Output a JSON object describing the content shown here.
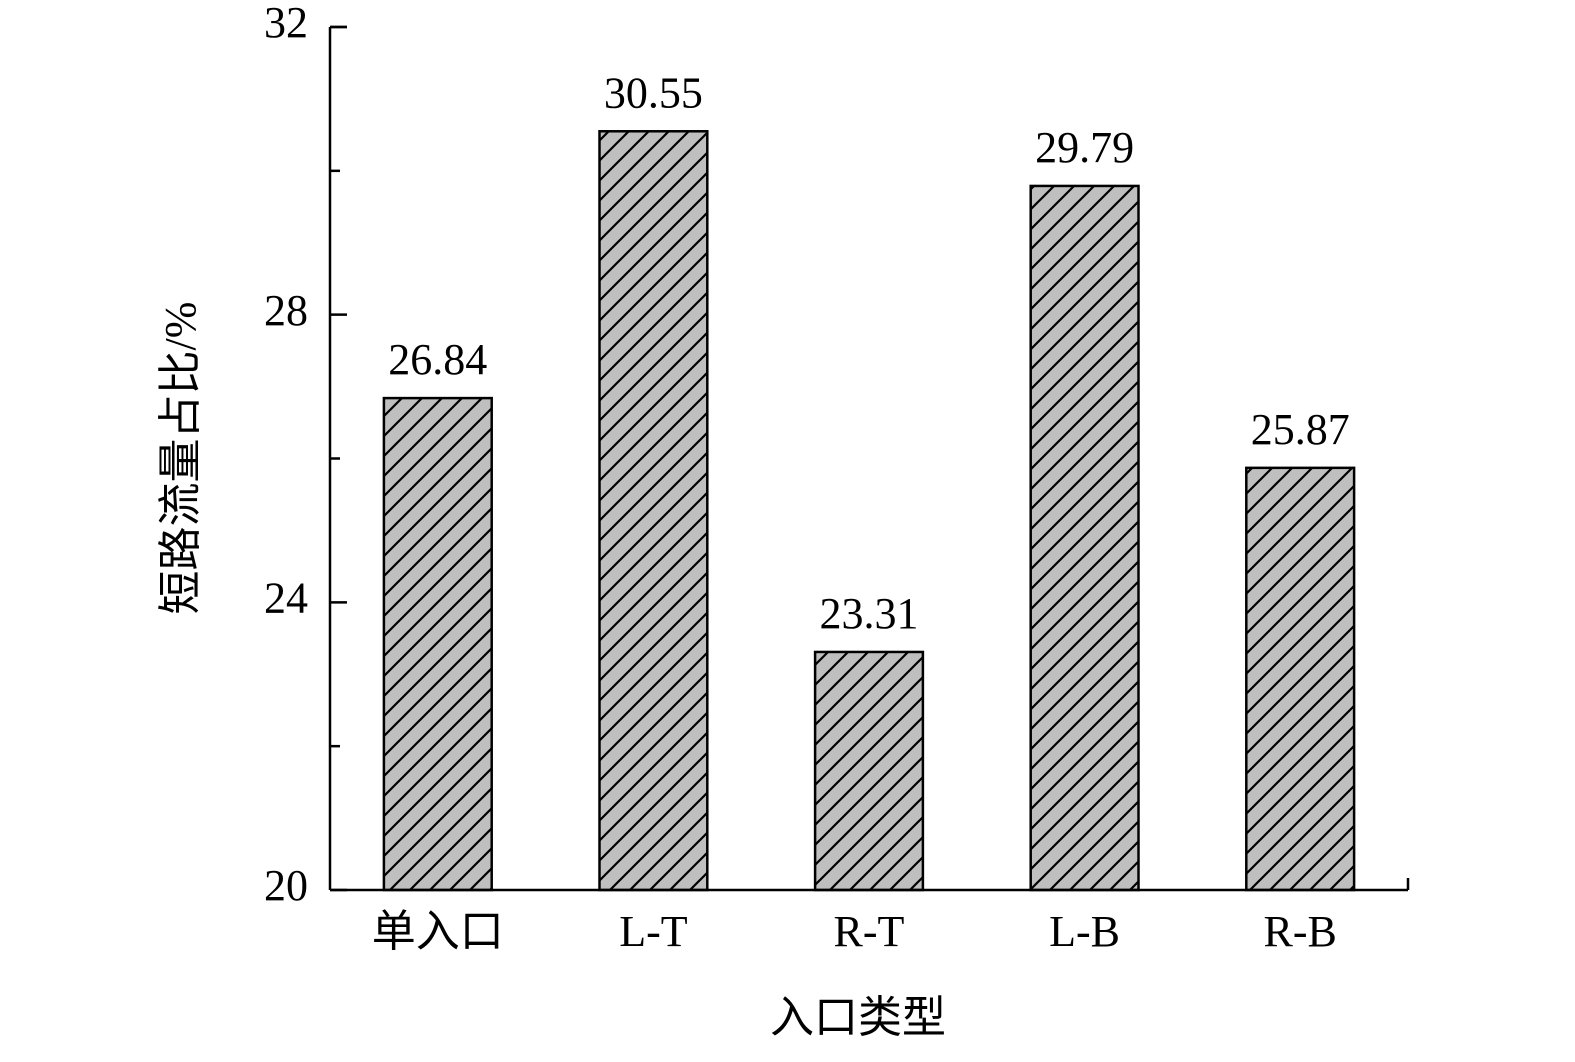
{
  "chart_data": {
    "type": "bar",
    "x_label": "入口类型",
    "y_label": "短路流量占比/%",
    "categories": [
      "单入口",
      "L-T",
      "R-T",
      "L-B",
      "R-B"
    ],
    "values": [
      26.84,
      30.55,
      23.31,
      29.79,
      25.87
    ],
    "color": "#bfbfbf",
    "hatch": "/",
    "ylim": [
      20,
      32
    ],
    "yticks": [
      20,
      24,
      28,
      32
    ],
    "yminorticks": [
      22,
      26,
      30
    ],
    "grid": false
  }
}
